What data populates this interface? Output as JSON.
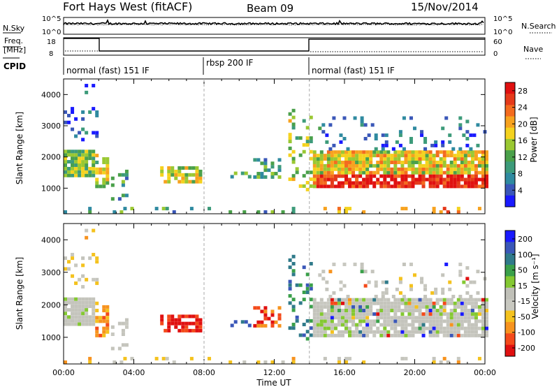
{
  "header": {
    "radar": "Fort Hays West (fitACF)",
    "beam": "Beam 09",
    "date": "15/Nov/2014"
  },
  "panels": {
    "nsky_label": "N.Sky",
    "nsky_ticks": [
      "10^5",
      "10^0"
    ],
    "nsearch_label": "N.Search",
    "nsearch_ticks": [
      "10^5",
      "10^0"
    ],
    "freq_label_1": "Freq.",
    "freq_label_2": "[MHz]",
    "freq_ticks": [
      "18",
      "8"
    ],
    "nave_label": "Nave",
    "nave_ticks": [
      "60",
      "0"
    ],
    "cpid_label": "CPID"
  },
  "cpid_segments": [
    {
      "label": "normal (fast) 151 IF",
      "start": "00:00",
      "end": "08:00"
    },
    {
      "label": "rbsp 200 IF",
      "start": "08:00",
      "end": "14:00"
    },
    {
      "label": "normal (fast) 151 IF",
      "start": "14:00",
      "end": "24:00"
    }
  ],
  "colors": {
    "power": [
      "#1a1aff",
      "#3a57b8",
      "#2f8aa0",
      "#3d9b7a",
      "#4aa04a",
      "#9ac832",
      "#f4d21e",
      "#f7a21e",
      "#f46b1e",
      "#e53a1a",
      "#e01010"
    ],
    "velocity": [
      "#e01010",
      "#f44a1a",
      "#f7931e",
      "#f4c21e",
      "#c8c8c0",
      "#c0c0b8",
      "#84c832",
      "#3aa04a",
      "#2f7a8a",
      "#3a57b8",
      "#1a1aff"
    ]
  },
  "chart_data": [
    {
      "type": "heatmap",
      "name": "power",
      "xlabel": "Time UT",
      "ylabel": "Slant Range [km]",
      "x_ticks": [
        "00:00",
        "04:00",
        "08:00",
        "12:00",
        "16:00",
        "20:00",
        "00:00"
      ],
      "y_ticks": [
        "1000",
        "2000",
        "3000",
        "4000"
      ],
      "xlim": [
        0,
        24
      ],
      "ylim": [
        180,
        4500
      ],
      "colorbar_label": "Power [dB]",
      "colorbar_ticks": [
        "4",
        "8",
        "12",
        "16",
        "20",
        "24",
        "28"
      ],
      "colorbar_range": [
        0,
        30
      ]
    },
    {
      "type": "heatmap",
      "name": "velocity",
      "xlabel": "Time UT",
      "ylabel": "Slant Range [km]",
      "x_ticks": [
        "00:00",
        "04:00",
        "08:00",
        "12:00",
        "16:00",
        "20:00",
        "00:00"
      ],
      "y_ticks": [
        "1000",
        "2000",
        "3000",
        "4000"
      ],
      "xlim": [
        0,
        24
      ],
      "ylim": [
        180,
        4500
      ],
      "colorbar_label": "Velocity [m s⁻¹]",
      "colorbar_ticks": [
        "200",
        "100",
        "50",
        "15",
        "-15",
        "-50",
        "-100",
        "-200"
      ],
      "colorbar_range": [
        -250,
        250
      ]
    }
  ],
  "xlabel": "Time UT"
}
